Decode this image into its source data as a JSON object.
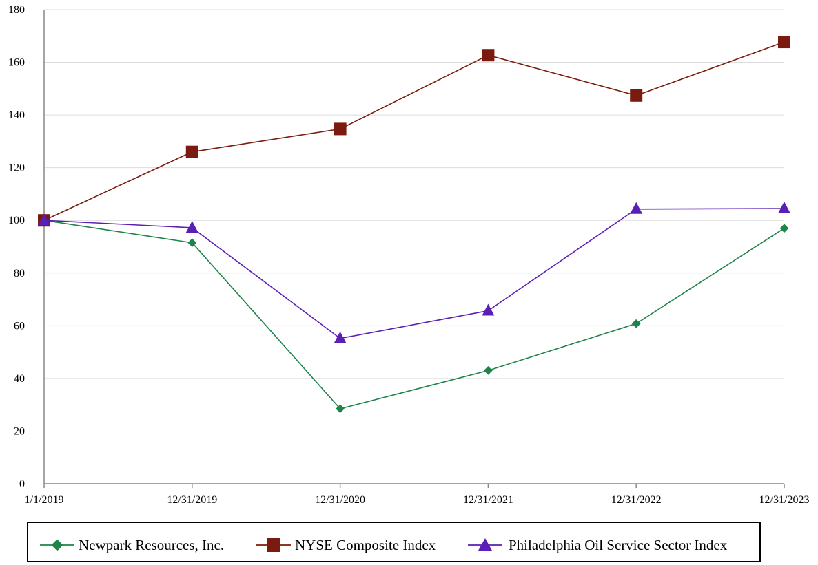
{
  "chart_data": {
    "type": "line",
    "title": "",
    "xlabel": "",
    "ylabel": "",
    "x": [
      "1/1/2019",
      "12/31/2019",
      "12/31/2020",
      "12/31/2021",
      "12/31/2022",
      "12/31/2023"
    ],
    "ylim": [
      0,
      180
    ],
    "yticks": [
      0,
      20,
      40,
      60,
      80,
      100,
      120,
      140,
      160,
      180
    ],
    "grid": true,
    "legend_position": "bottom",
    "series": [
      {
        "name": "Newpark Resources, Inc.",
        "marker": "diamond",
        "color": "#1e8449",
        "values": [
          100,
          91.5,
          28.5,
          43.0,
          60.8,
          97.0
        ]
      },
      {
        "name": "NYSE Composite Index",
        "marker": "square",
        "color": "#7b1a0e",
        "values": [
          100,
          126.0,
          134.7,
          162.7,
          147.4,
          167.7
        ]
      },
      {
        "name": "Philadelphia Oil Service Sector Index",
        "marker": "triangle",
        "color": "#5a1fb5",
        "values": [
          100,
          97.2,
          55.2,
          65.7,
          104.3,
          104.5
        ]
      }
    ]
  }
}
